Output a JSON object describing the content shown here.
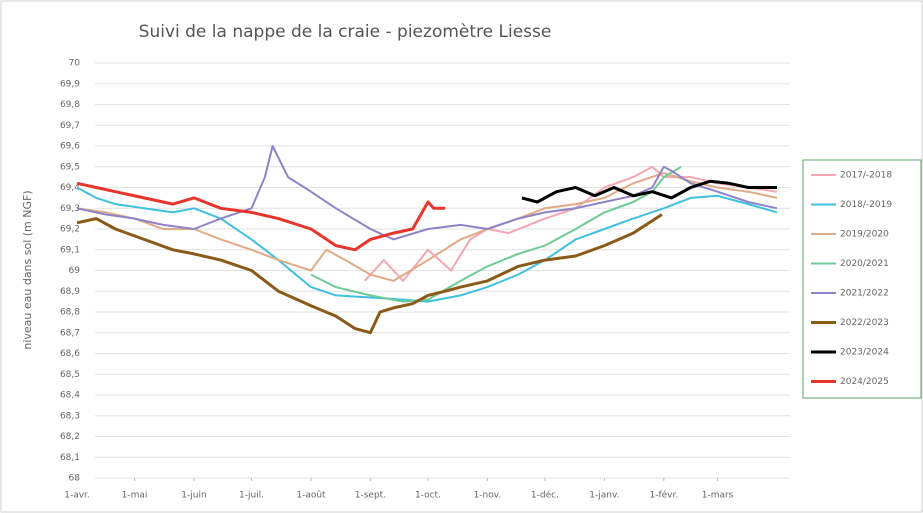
{
  "chart_data": {
    "type": "line",
    "title": "Suivi de la nappe de la craie - piezomètre Liesse",
    "y_label": "niveau eau dans sol (m NGF)",
    "xlim": [
      0,
      365
    ],
    "xticks": [
      {
        "value": 0,
        "label": "1-avr."
      },
      {
        "value": 30,
        "label": "1-mai"
      },
      {
        "value": 61,
        "label": "1-juin"
      },
      {
        "value": 91,
        "label": "1-juil."
      },
      {
        "value": 122,
        "label": "1-août"
      },
      {
        "value": 153,
        "label": "1-sept."
      },
      {
        "value": 183,
        "label": "1-oct."
      },
      {
        "value": 214,
        "label": "1-nov."
      },
      {
        "value": 244,
        "label": "1-déc."
      },
      {
        "value": 275,
        "label": "1-janv."
      },
      {
        "value": 306,
        "label": "1-févr."
      },
      {
        "value": 334,
        "label": "1-mars"
      }
    ],
    "ylim": [
      68,
      70
    ],
    "yticks": [
      68,
      {
        "value": 68.1,
        "label": "68,1"
      },
      {
        "value": 68.2,
        "label": "68,2"
      },
      {
        "value": 68.3,
        "label": "68,3"
      },
      {
        "value": 68.4,
        "label": "68,4"
      },
      {
        "value": 68.5,
        "label": "68,5"
      },
      {
        "value": 68.6,
        "label": "68,6"
      },
      {
        "value": 68.7,
        "label": "68,7"
      },
      {
        "value": 68.8,
        "label": "68,8"
      },
      {
        "value": 68.9,
        "label": "68,9"
      },
      69,
      {
        "value": 69.1,
        "label": "69,1"
      },
      {
        "value": 69.2,
        "label": "69,2"
      },
      {
        "value": 69.3,
        "label": "69,3"
      },
      {
        "value": 69.4,
        "label": "69,4"
      },
      {
        "value": 69.5,
        "label": "69,5"
      },
      {
        "value": 69.6,
        "label": "69,6"
      },
      {
        "value": 69.7,
        "label": "69,7"
      },
      {
        "value": 69.8,
        "label": "69,8"
      },
      {
        "value": 69.9,
        "label": "69,9"
      },
      70
    ],
    "grid": true,
    "legend": "right",
    "series": [
      {
        "name": "2017/-2018",
        "color": "#f4a6b4",
        "width": 2,
        "x": [
          150,
          160,
          170,
          183,
          195,
          205,
          214,
          225,
          244,
          260,
          275,
          290,
          300,
          306,
          320,
          334,
          350,
          365
        ],
        "values": [
          68.95,
          69.05,
          68.95,
          69.1,
          69.0,
          69.15,
          69.2,
          69.18,
          69.25,
          69.3,
          69.4,
          69.45,
          69.5,
          69.45,
          69.45,
          69.42,
          69.4,
          69.38
        ]
      },
      {
        "name": "2018/-2019",
        "color": "#3fc0e0",
        "width": 2,
        "x": [
          0,
          10,
          20,
          35,
          50,
          61,
          75,
          91,
          105,
          122,
          135,
          153,
          170,
          183,
          200,
          214,
          230,
          244,
          260,
          275,
          290,
          306,
          320,
          334,
          350,
          365
        ],
        "values": [
          69.4,
          69.35,
          69.32,
          69.3,
          69.28,
          69.3,
          69.25,
          69.15,
          69.05,
          68.92,
          68.88,
          68.87,
          68.86,
          68.85,
          68.88,
          68.92,
          68.98,
          69.05,
          69.15,
          69.2,
          69.25,
          69.3,
          69.35,
          69.36,
          69.32,
          69.28
        ]
      },
      {
        "name": "2019/2020",
        "color": "#e0ab86",
        "width": 2,
        "x": [
          0,
          15,
          30,
          45,
          61,
          75,
          91,
          105,
          122,
          130,
          140,
          153,
          165,
          183,
          200,
          214,
          230,
          244,
          260,
          275,
          290,
          306,
          320,
          334,
          350,
          365
        ],
        "values": [
          69.3,
          69.28,
          69.25,
          69.2,
          69.2,
          69.15,
          69.1,
          69.05,
          69.0,
          69.1,
          69.05,
          68.98,
          68.95,
          69.05,
          69.15,
          69.2,
          69.25,
          69.3,
          69.32,
          69.35,
          69.42,
          69.47,
          69.43,
          69.4,
          69.38,
          69.35
        ]
      },
      {
        "name": "2020/2021",
        "color": "#6ecb94",
        "width": 2,
        "x": [
          122,
          135,
          153,
          170,
          183,
          200,
          214,
          230,
          244,
          260,
          275,
          290,
          300,
          306,
          315
        ],
        "values": [
          68.98,
          68.92,
          68.88,
          68.85,
          68.86,
          68.95,
          69.02,
          69.08,
          69.12,
          69.2,
          69.28,
          69.33,
          69.38,
          69.45,
          69.5
        ]
      },
      {
        "name": "2021/2022",
        "color": "#8f82c9",
        "width": 2,
        "x": [
          0,
          15,
          30,
          45,
          61,
          75,
          91,
          98,
          102,
          110,
          122,
          135,
          153,
          165,
          183,
          200,
          214,
          230,
          244,
          260,
          275,
          290,
          300,
          306,
          310,
          320,
          334,
          350,
          365
        ],
        "values": [
          69.3,
          69.27,
          69.25,
          69.22,
          69.2,
          69.25,
          69.3,
          69.45,
          69.6,
          69.45,
          69.38,
          69.3,
          69.2,
          69.15,
          69.2,
          69.22,
          69.2,
          69.25,
          69.28,
          69.3,
          69.33,
          69.36,
          69.4,
          69.5,
          69.48,
          69.42,
          69.38,
          69.33,
          69.3
        ]
      },
      {
        "name": "2022/2023",
        "color": "#8a5a19",
        "width": 3,
        "x": [
          0,
          10,
          20,
          35,
          50,
          61,
          75,
          91,
          105,
          122,
          135,
          145,
          153,
          158,
          165,
          175,
          183,
          192,
          200,
          214,
          230,
          244,
          260,
          275,
          290,
          305
        ],
        "values": [
          69.23,
          69.25,
          69.2,
          69.15,
          69.1,
          69.08,
          69.05,
          69.0,
          68.9,
          68.83,
          68.78,
          68.72,
          68.7,
          68.8,
          68.82,
          68.84,
          68.88,
          68.9,
          68.92,
          68.95,
          69.02,
          69.05,
          69.07,
          69.12,
          69.18,
          69.27
        ]
      },
      {
        "name": "2023/2024",
        "color": "#000000",
        "width": 3,
        "x": [
          232,
          240,
          250,
          260,
          270,
          280,
          290,
          300,
          310,
          320,
          330,
          340,
          350,
          365
        ],
        "values": [
          69.35,
          69.33,
          69.38,
          69.4,
          69.36,
          69.4,
          69.36,
          69.38,
          69.35,
          69.4,
          69.43,
          69.42,
          69.4,
          69.4
        ]
      },
      {
        "name": "2024/2025",
        "color": "#e8352c",
        "width": 3,
        "x": [
          0,
          10,
          20,
          35,
          50,
          61,
          75,
          91,
          105,
          122,
          135,
          145,
          153,
          165,
          175,
          183,
          186,
          192
        ],
        "values": [
          69.42,
          69.4,
          69.38,
          69.35,
          69.32,
          69.35,
          69.3,
          69.28,
          69.25,
          69.2,
          69.12,
          69.1,
          69.15,
          69.18,
          69.2,
          69.33,
          69.3,
          69.3
        ]
      }
    ]
  }
}
